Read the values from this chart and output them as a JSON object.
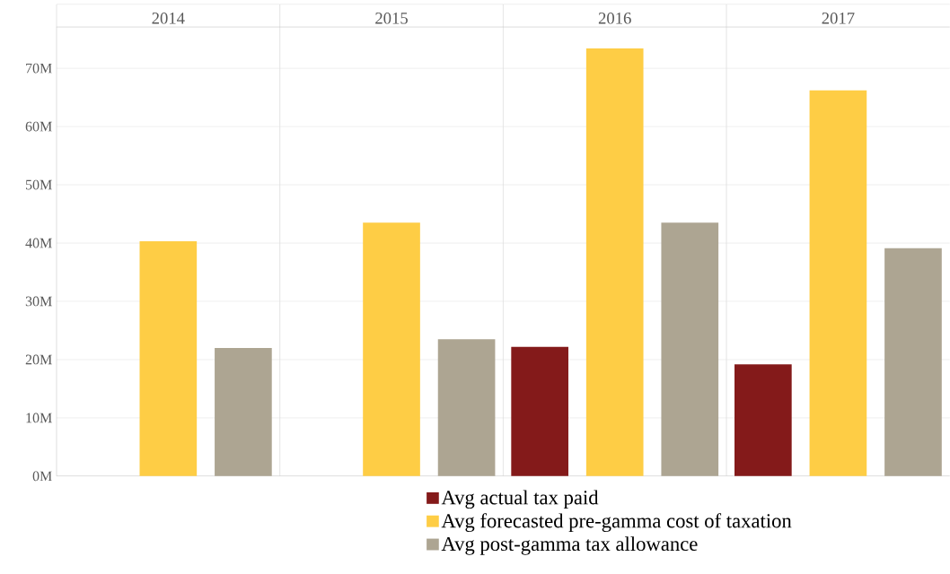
{
  "chart_data": {
    "type": "bar",
    "categories": [
      "2014",
      "2015",
      "2016",
      "2017"
    ],
    "series": [
      {
        "name": "Avg actual tax paid",
        "color": "#841a1a",
        "values": [
          null,
          null,
          22.2,
          19.2
        ]
      },
      {
        "name": "Avg forecasted pre-gamma cost of taxation",
        "color": "#fecd45",
        "values": [
          40.3,
          43.5,
          73.4,
          66.2
        ]
      },
      {
        "name": "Avg post-gamma tax allowance",
        "color": "#ada592",
        "values": [
          22.0,
          23.5,
          43.5,
          39.1
        ]
      }
    ],
    "ylim": [
      0,
      77.1
    ],
    "yticks": [
      {
        "value": 0,
        "label": "0M"
      },
      {
        "value": 10,
        "label": "10M"
      },
      {
        "value": 20,
        "label": "20M"
      },
      {
        "value": 30,
        "label": "30M"
      },
      {
        "value": 40,
        "label": "40M"
      },
      {
        "value": 50,
        "label": "50M"
      },
      {
        "value": 60,
        "label": "60M"
      },
      {
        "value": 70,
        "label": "70M"
      }
    ],
    "grid": "y",
    "legend": "bottom"
  }
}
